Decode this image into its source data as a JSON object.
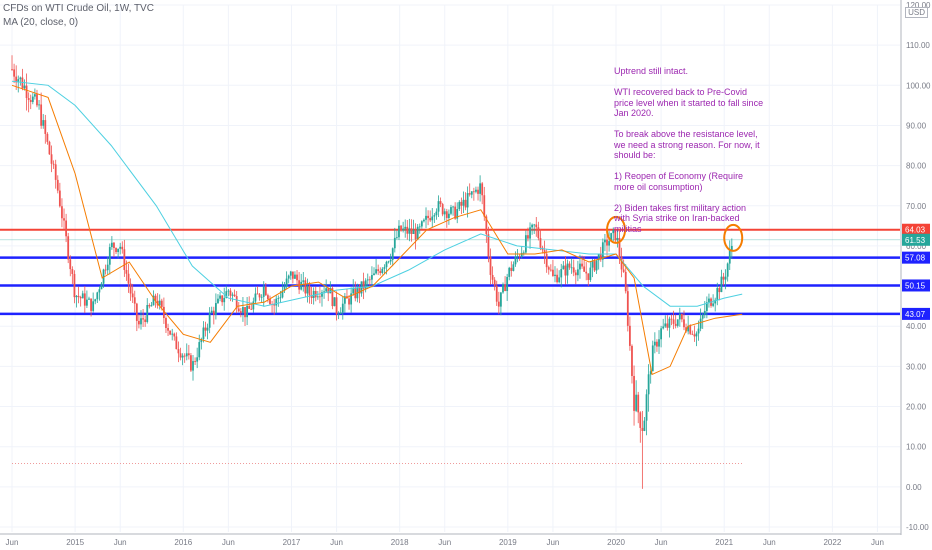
{
  "header": {
    "symbol_line": "CFDs on WTI Crude Oil, 1W, TVC",
    "indicator_line": "MA (20, close, 0)"
  },
  "currency_badge": "USD",
  "annotation": {
    "paragraphs": [
      "Uptrend still intact.",
      "WTI recovered back to Pre-Covid price level when it started to fall since Jan 2020.",
      "To break above the resistance level, we need a strong reason.  For now, it should be:",
      "1) Reopen of Economy (Require more oil consumption)",
      "2) Biden takes first military action with Syria strike on Iran-backed militias"
    ]
  },
  "colors": {
    "up": "#26a69a",
    "down": "#ef5350",
    "ma_fast": "#f57c00",
    "ma_slow": "#4dd0e1",
    "resistance": "#f44336",
    "support": "#1e22ff",
    "annotation_text": "#9c27b0",
    "marker": "#f57c00"
  },
  "chart_data": {
    "type": "candlestick",
    "title": "CFDs on WTI Crude Oil, 1W, TVC",
    "ylim": [
      -10,
      120
    ],
    "y_ticks": [
      "120.00",
      "110.00",
      "100.00",
      "90.00",
      "80.00",
      "70.00",
      "60.00",
      "50.00",
      "40.00",
      "30.00",
      "20.00",
      "10.00",
      "0.00",
      "-10.00"
    ],
    "x_ticks": [
      "Jun",
      "2015",
      "Jun",
      "2016",
      "Jun",
      "2017",
      "Jun",
      "2018",
      "Jun",
      "2019",
      "Jun",
      "2020",
      "Jun",
      "2021",
      "Jun",
      "2022",
      "Jun"
    ],
    "price_path": [
      [
        "2014-06",
        104
      ],
      [
        "2014-07",
        101
      ],
      [
        "2014-09",
        94
      ],
      [
        "2014-11",
        75
      ],
      [
        "2015-01",
        48
      ],
      [
        "2015-03",
        45
      ],
      [
        "2015-05",
        60
      ],
      [
        "2015-06",
        60
      ],
      [
        "2015-08",
        40
      ],
      [
        "2015-10",
        47
      ],
      [
        "2015-12",
        36
      ],
      [
        "2016-02",
        30
      ],
      [
        "2016-04",
        43
      ],
      [
        "2016-06",
        49
      ],
      [
        "2016-08",
        43
      ],
      [
        "2016-10",
        50
      ],
      [
        "2016-11",
        45
      ],
      [
        "2017-01",
        53
      ],
      [
        "2017-03",
        48
      ],
      [
        "2017-05",
        50
      ],
      [
        "2017-06",
        44
      ],
      [
        "2017-08",
        48
      ],
      [
        "2017-10",
        52
      ],
      [
        "2017-12",
        58
      ],
      [
        "2018-01",
        64
      ],
      [
        "2018-03",
        63
      ],
      [
        "2018-05",
        70
      ],
      [
        "2018-07",
        68
      ],
      [
        "2018-10",
        75
      ],
      [
        "2018-11",
        55
      ],
      [
        "2018-12",
        45
      ],
      [
        "2019-01",
        53
      ],
      [
        "2019-04",
        65
      ],
      [
        "2019-06",
        52
      ],
      [
        "2019-08",
        55
      ],
      [
        "2019-10",
        53
      ],
      [
        "2019-12",
        61
      ],
      [
        "2020-01",
        63
      ],
      [
        "2020-02",
        50
      ],
      [
        "2020-03",
        22
      ],
      [
        "2020-04",
        15
      ],
      [
        "2020-05",
        33
      ],
      [
        "2020-06",
        39
      ],
      [
        "2020-08",
        42
      ],
      [
        "2020-10",
        38
      ],
      [
        "2020-11",
        45
      ],
      [
        "2020-12",
        48
      ],
      [
        "2021-01",
        52
      ],
      [
        "2021-02",
        61.53
      ]
    ],
    "extremes": {
      "low_spike": -0.5,
      "high": 107.5
    },
    "ma_fast_path": [
      [
        "2014-06",
        100
      ],
      [
        "2014-10",
        97
      ],
      [
        "2015-01",
        78
      ],
      [
        "2015-04",
        52
      ],
      [
        "2015-07",
        56
      ],
      [
        "2015-10",
        46
      ],
      [
        "2016-01",
        38
      ],
      [
        "2016-04",
        36
      ],
      [
        "2016-07",
        45
      ],
      [
        "2016-10",
        46
      ],
      [
        "2017-01",
        50
      ],
      [
        "2017-04",
        51
      ],
      [
        "2017-07",
        47
      ],
      [
        "2017-10",
        50
      ],
      [
        "2018-01",
        57
      ],
      [
        "2018-04",
        64
      ],
      [
        "2018-07",
        67
      ],
      [
        "2018-10",
        69
      ],
      [
        "2019-01",
        58
      ],
      [
        "2019-04",
        58
      ],
      [
        "2019-07",
        59
      ],
      [
        "2019-10",
        56
      ],
      [
        "2020-01",
        58
      ],
      [
        "2020-03",
        52
      ],
      [
        "2020-05",
        28
      ],
      [
        "2020-07",
        30
      ],
      [
        "2020-09",
        40
      ],
      [
        "2020-12",
        42
      ],
      [
        "2021-03",
        43
      ]
    ],
    "ma_slow_path": [
      [
        "2014-06",
        101
      ],
      [
        "2014-10",
        100
      ],
      [
        "2015-01",
        95
      ],
      [
        "2015-05",
        85
      ],
      [
        "2015-10",
        70
      ],
      [
        "2016-02",
        55
      ],
      [
        "2016-06",
        47
      ],
      [
        "2016-10",
        45
      ],
      [
        "2017-02",
        47
      ],
      [
        "2017-06",
        49
      ],
      [
        "2017-10",
        50
      ],
      [
        "2018-02",
        54
      ],
      [
        "2018-06",
        59
      ],
      [
        "2018-10",
        63
      ],
      [
        "2019-02",
        60
      ],
      [
        "2019-06",
        59
      ],
      [
        "2019-10",
        58
      ],
      [
        "2020-01",
        58
      ],
      [
        "2020-04",
        50
      ],
      [
        "2020-07",
        45
      ],
      [
        "2020-10",
        45
      ],
      [
        "2021-01",
        47
      ],
      [
        "2021-03",
        48
      ]
    ],
    "horizontal_levels": [
      {
        "value": 64.03,
        "label": "64.03",
        "kind": "resistance"
      },
      {
        "value": 61.53,
        "label": "61.53",
        "kind": "last-price"
      },
      {
        "value": 57.08,
        "label": "57.08",
        "kind": "support"
      },
      {
        "value": 50.15,
        "label": "50.15",
        "kind": "support"
      },
      {
        "value": 43.07,
        "label": "43.07",
        "kind": "support"
      }
    ],
    "markers": [
      {
        "date": "2020-01",
        "value": 64,
        "shape": "circle"
      },
      {
        "date": "2021-02",
        "value": 62,
        "shape": "circle"
      }
    ],
    "dotted_line": {
      "value": 5.8,
      "from": "2014-06",
      "to": "2021-03"
    },
    "grid": true
  }
}
